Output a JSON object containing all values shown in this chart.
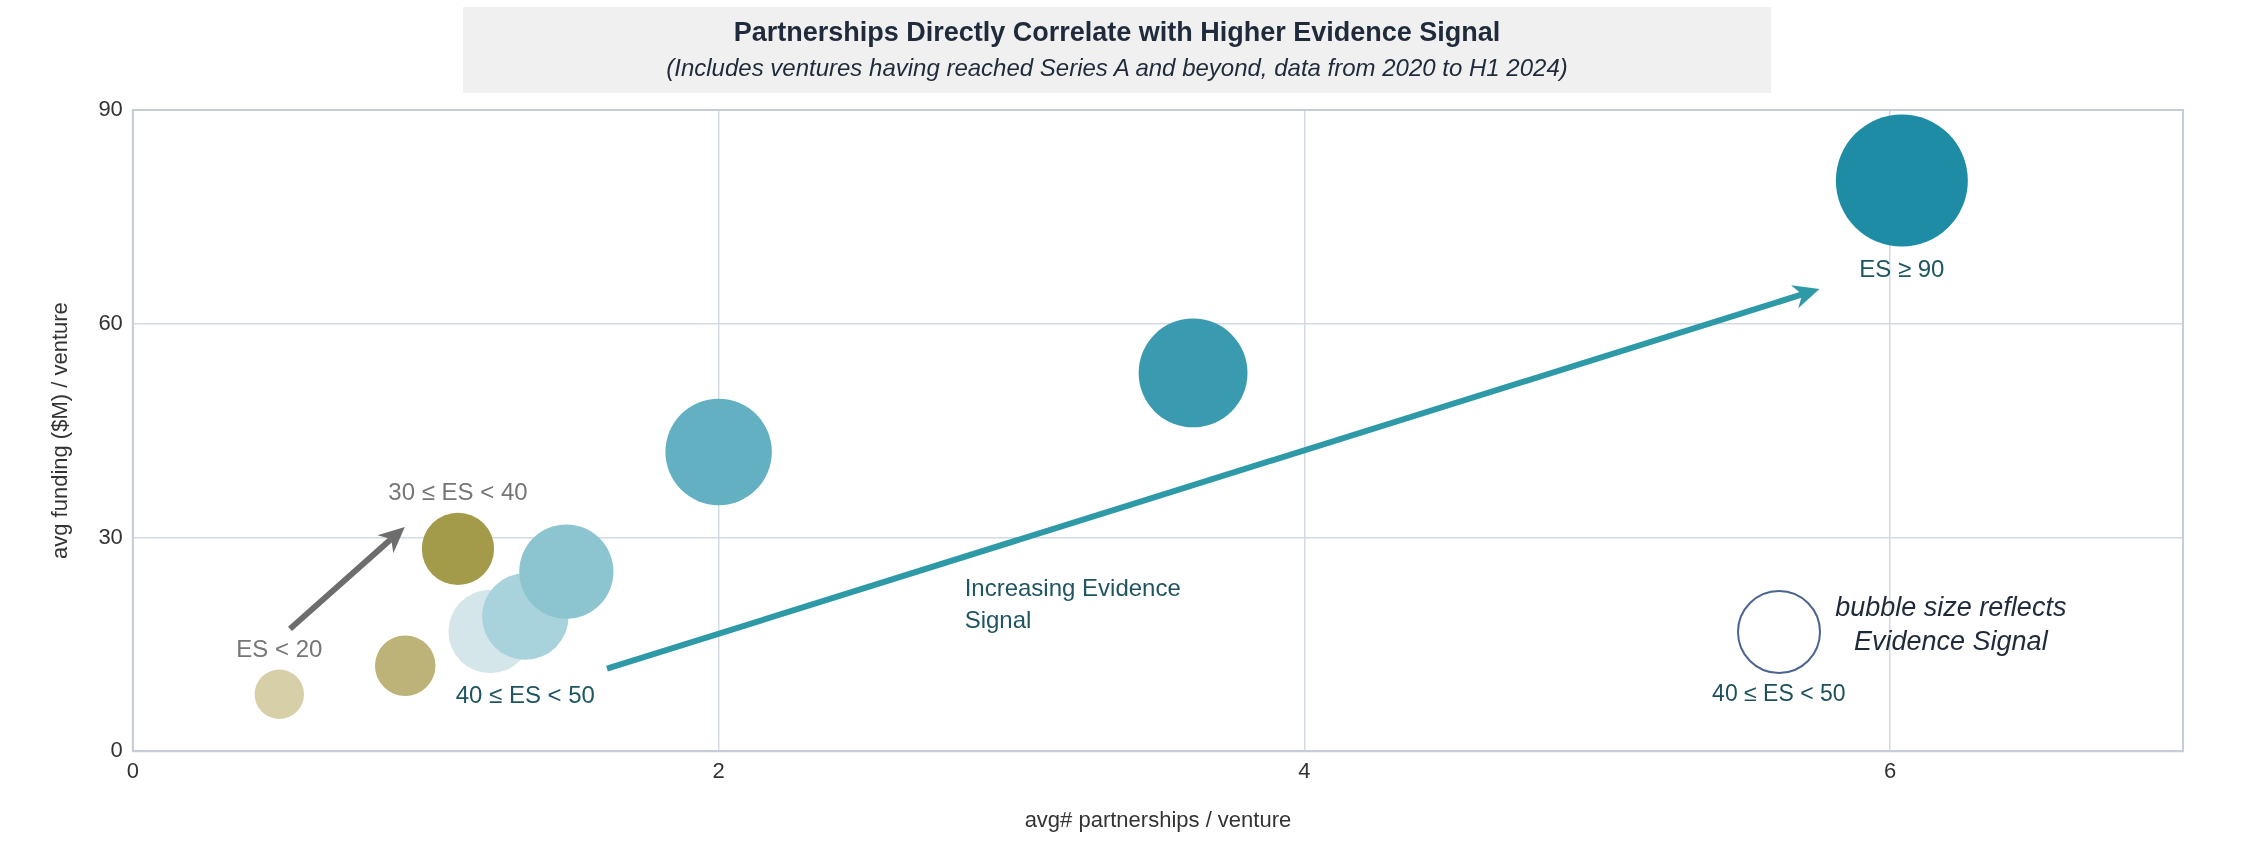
{
  "chart_data": {
    "type": "bubble",
    "title": "Partnerships Directly Correlate with Higher Evidence Signal",
    "subtitle": "(Includes ventures having reached Series A and beyond, data from 2020 to H1 2024)",
    "xlabel": "avg# partnerships / venture",
    "ylabel": "avg funding ($M) / venture",
    "x": [
      0.5,
      0.93,
      1.11,
      1.22,
      1.34,
      1.48,
      2.0,
      3.62,
      6.04
    ],
    "values": [
      8,
      12,
      28.4,
      16.8,
      18.9,
      25.2,
      42,
      53.1,
      80.1
    ],
    "sizes": [
      0.14,
      0.21,
      0.3,
      0.4,
      0.43,
      0.51,
      0.65,
      0.68,
      1
    ],
    "colors": [
      "#d6cfa8",
      "#bdb277",
      "#a39a4a",
      "#d4e6ea",
      "#a9d3dc",
      "#8cc5d0",
      "#62b0c2",
      "#3a9bb0",
      "#1e8ca5"
    ],
    "xlim": [
      0,
      7
    ],
    "xticks": [
      0,
      2,
      4,
      6
    ],
    "ylim": [
      0,
      90
    ],
    "yticks": [
      0,
      30,
      60,
      90
    ],
    "grid": true,
    "legend": false,
    "annotations": [
      "30 ≤ ES < 40",
      "ES < 20",
      "40 ≤ ES < 50",
      "ES ≥ 90",
      "Increasing Evidence Signal",
      "bubble size reflects Evidence Signal",
      "40 ≤ ES < 50"
    ]
  }
}
